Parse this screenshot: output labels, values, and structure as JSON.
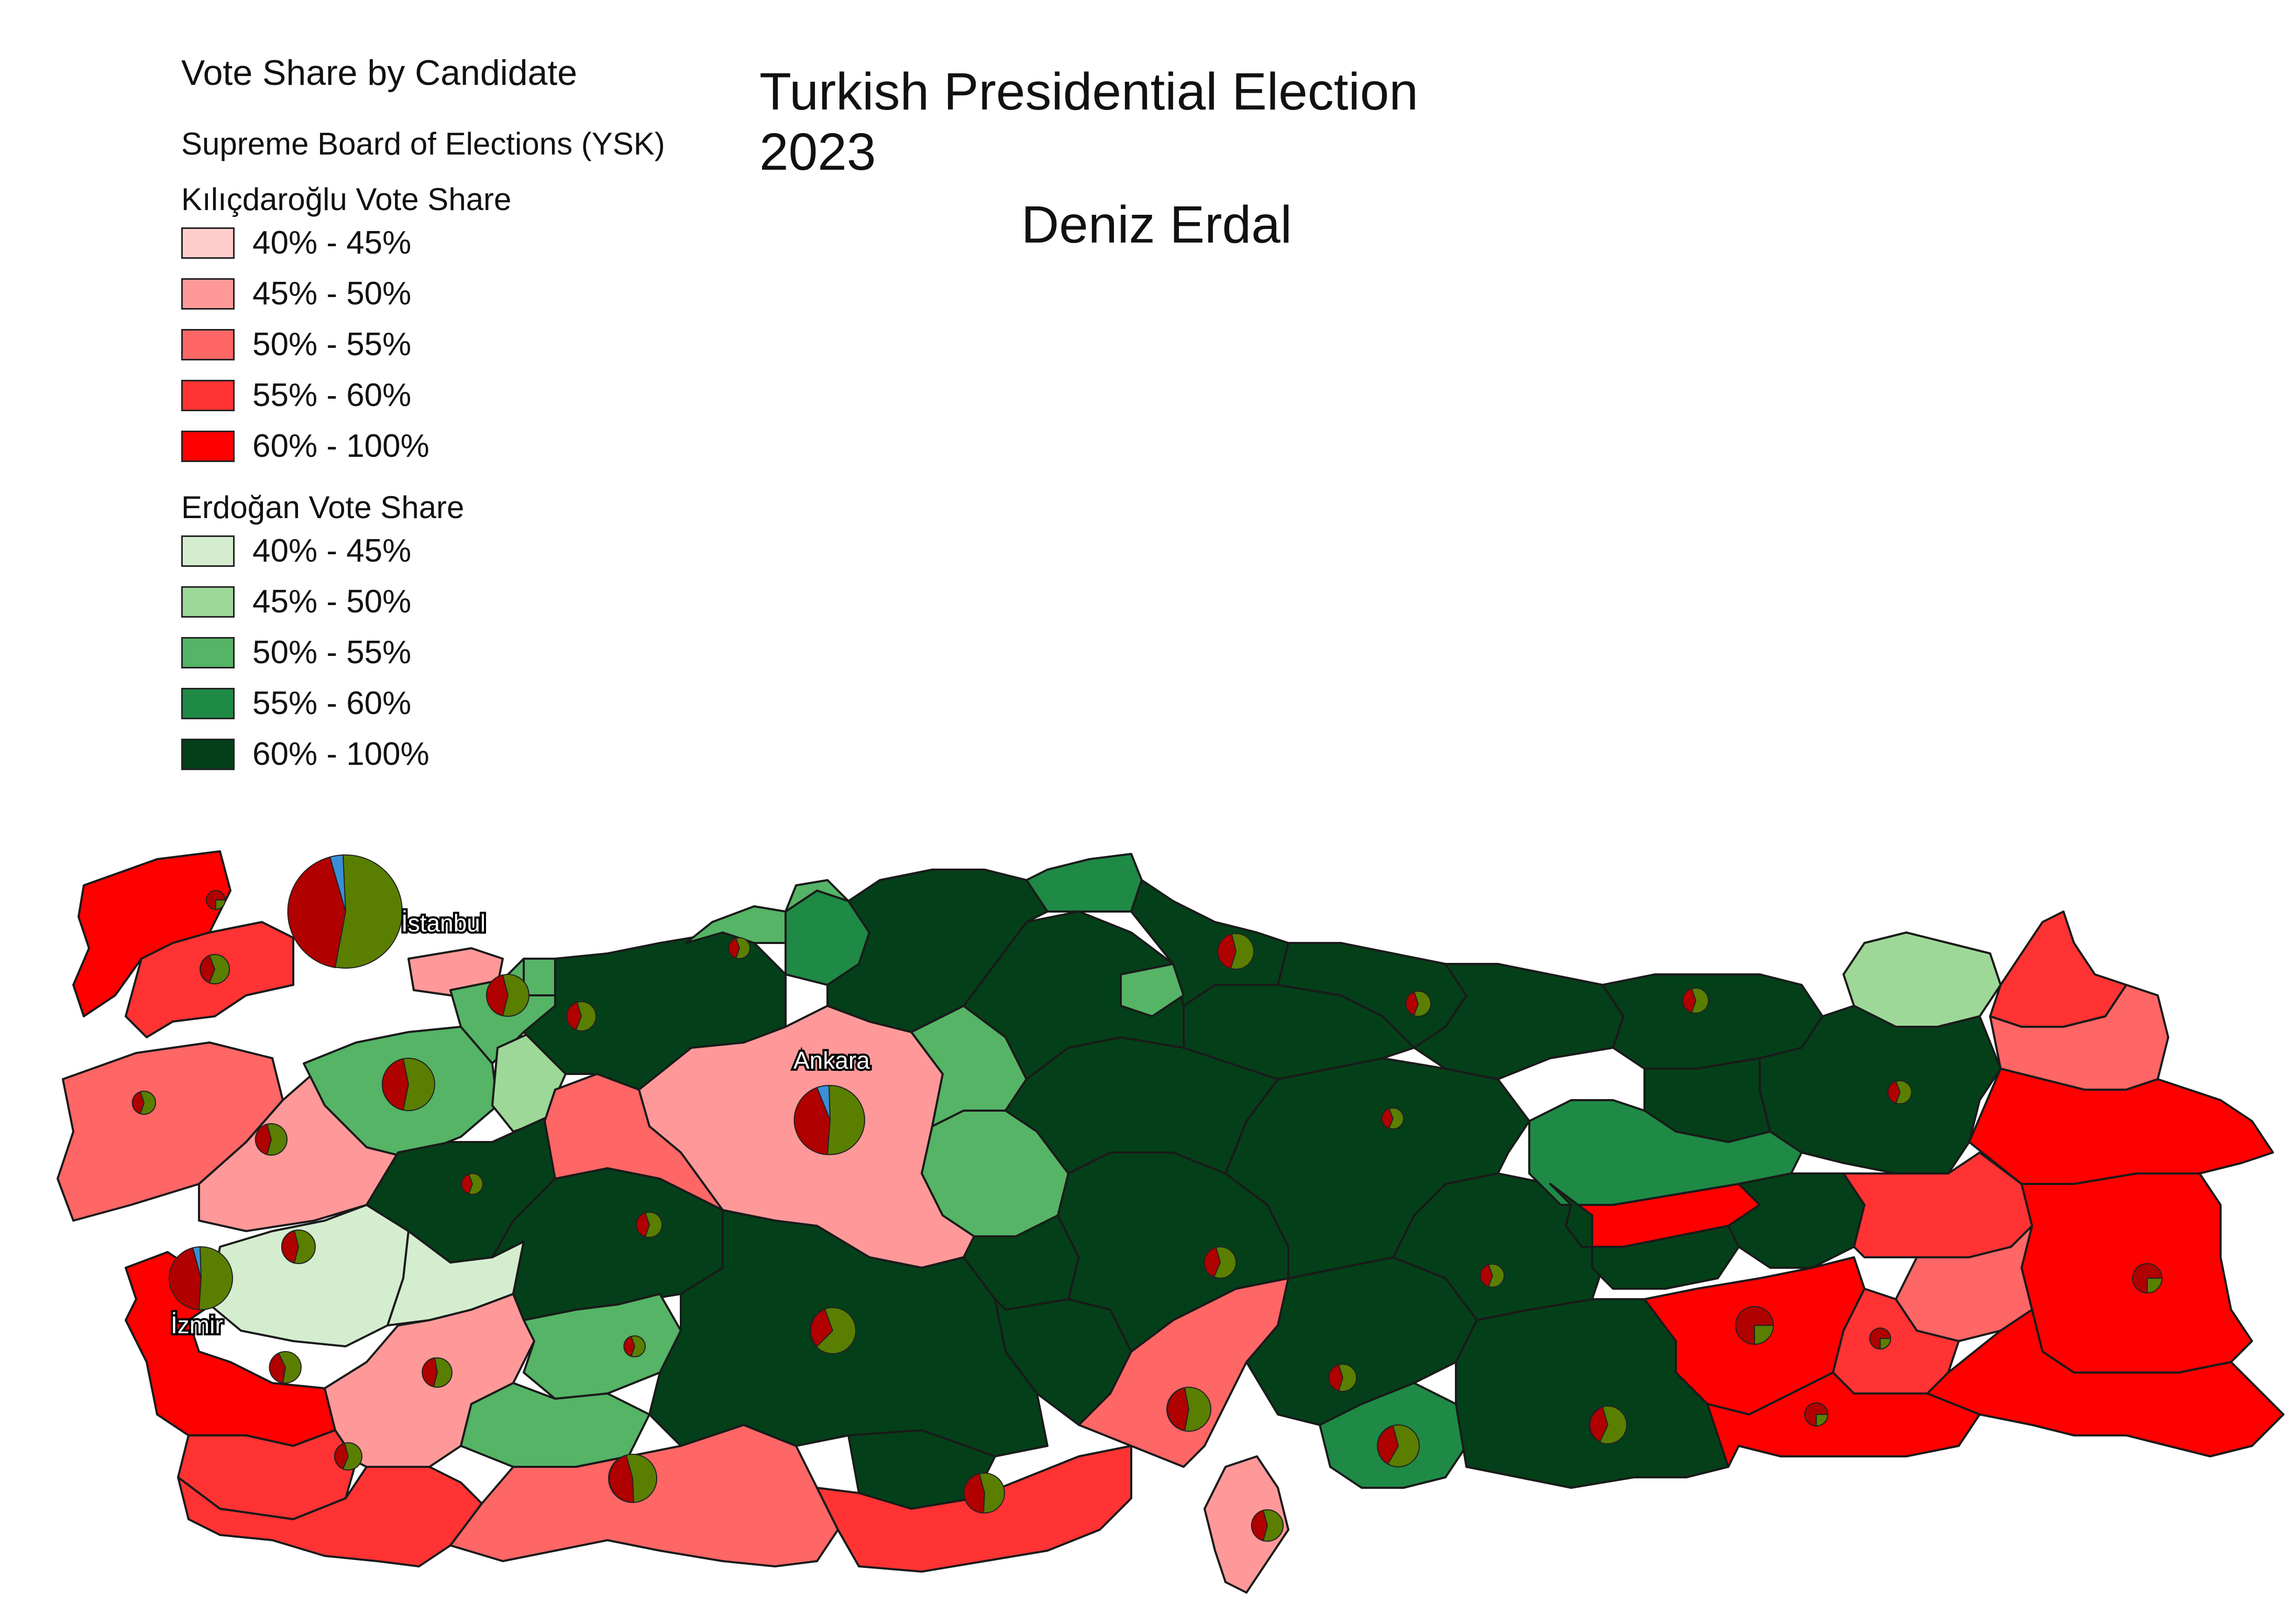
{
  "map": {
    "title": "Turkish Presidential Election 2023",
    "author": "Deniz Erdal",
    "legend": {
      "title": "Vote Share by Candidate",
      "source": "Supreme Board of Elections (YSK)",
      "kilicdaroglu": {
        "heading": "Kılıçdaroğlu Vote Share",
        "items": [
          {
            "label": "40% - 45%",
            "color": "#ffcccc"
          },
          {
            "label": "45% - 50%",
            "color": "#ff9999"
          },
          {
            "label": "50% - 55%",
            "color": "#ff6666"
          },
          {
            "label": "55% - 60%",
            "color": "#ff3333"
          },
          {
            "label": "60% - 100%",
            "color": "#ff0000"
          }
        ]
      },
      "erdogan": {
        "heading": "Erdoğan Vote Share",
        "items": [
          {
            "label": "40% - 45%",
            "color": "#d4edcf"
          },
          {
            "label": "45% - 50%",
            "color": "#9ed898"
          },
          {
            "label": "50% - 55%",
            "color": "#55b466"
          },
          {
            "label": "55% - 60%",
            "color": "#1e8a45"
          },
          {
            "label": "60% - 100%",
            "color": "#034019"
          }
        ]
      }
    },
    "cities": {
      "istanbul": "İstanbul",
      "ankara": "Ankara",
      "izmir": "İzmir"
    },
    "pie_colors": {
      "erdogan": "#5a7f00",
      "kilicdaroglu": "#b00000",
      "others": "#3a8fd6"
    }
  }
}
